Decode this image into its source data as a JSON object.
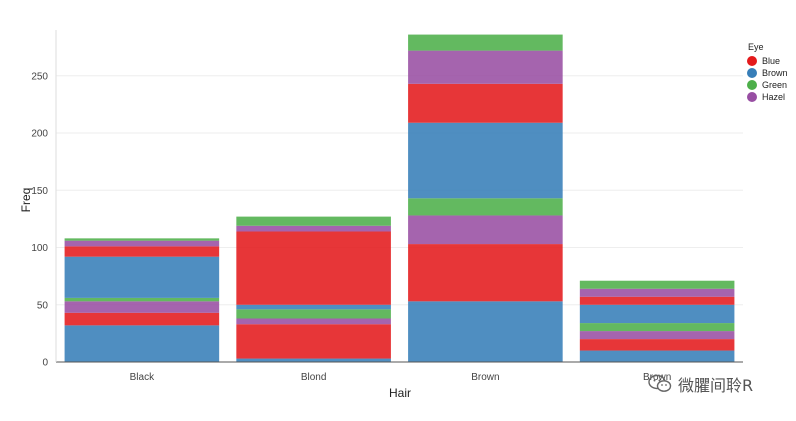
{
  "chart_data": {
    "type": "bar",
    "stacked": true,
    "xlabel": "Hair",
    "ylabel": "Freq",
    "ylim": [
      0,
      290
    ],
    "yticks": [
      0,
      50,
      100,
      150,
      200,
      250
    ],
    "grid": true,
    "categories": [
      "Black",
      "Blond",
      "Brown",
      "Brown"
    ],
    "legend": {
      "title": "Eye",
      "position": "top-right",
      "entries": [
        {
          "label": "Blue",
          "color": "#e41a1c"
        },
        {
          "label": "Brown",
          "color": "#377eb8"
        },
        {
          "label": "Green",
          "color": "#4daf4a"
        },
        {
          "label": "Hazel",
          "color": "#984ea3"
        }
      ]
    },
    "stacks": [
      [
        {
          "eye": "Brown",
          "value": 32
        },
        {
          "eye": "Blue",
          "value": 11
        },
        {
          "eye": "Hazel",
          "value": 10
        },
        {
          "eye": "Green",
          "value": 3
        },
        {
          "eye": "Brown",
          "value": 36
        },
        {
          "eye": "Blue",
          "value": 9
        },
        {
          "eye": "Hazel",
          "value": 5
        },
        {
          "eye": "Green",
          "value": 2
        }
      ],
      [
        {
          "eye": "Brown",
          "value": 3
        },
        {
          "eye": "Blue",
          "value": 30
        },
        {
          "eye": "Hazel",
          "value": 5
        },
        {
          "eye": "Green",
          "value": 8
        },
        {
          "eye": "Brown",
          "value": 4
        },
        {
          "eye": "Blue",
          "value": 64
        },
        {
          "eye": "Hazel",
          "value": 5
        },
        {
          "eye": "Green",
          "value": 8
        }
      ],
      [
        {
          "eye": "Brown",
          "value": 53
        },
        {
          "eye": "Blue",
          "value": 50
        },
        {
          "eye": "Hazel",
          "value": 25
        },
        {
          "eye": "Green",
          "value": 15
        },
        {
          "eye": "Brown",
          "value": 66
        },
        {
          "eye": "Blue",
          "value": 34
        },
        {
          "eye": "Hazel",
          "value": 29
        },
        {
          "eye": "Green",
          "value": 14
        }
      ],
      [
        {
          "eye": "Brown",
          "value": 10
        },
        {
          "eye": "Blue",
          "value": 10
        },
        {
          "eye": "Hazel",
          "value": 7
        },
        {
          "eye": "Green",
          "value": 7
        },
        {
          "eye": "Brown",
          "value": 16
        },
        {
          "eye": "Blue",
          "value": 7
        },
        {
          "eye": "Hazel",
          "value": 7
        },
        {
          "eye": "Green",
          "value": 7
        }
      ]
    ]
  },
  "watermark": {
    "text": "微臞间聆R"
  }
}
